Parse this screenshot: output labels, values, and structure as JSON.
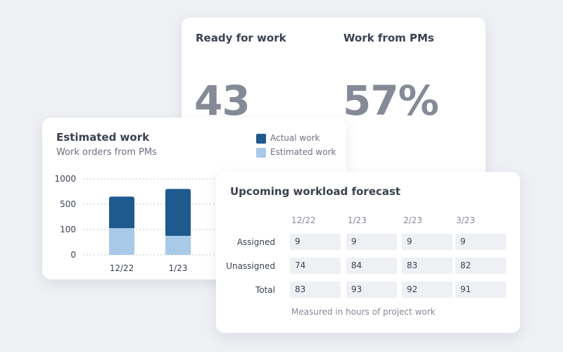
{
  "kpis": {
    "ready": {
      "label": "Ready for work",
      "value": "43"
    },
    "pms": {
      "label": "Work from PMs",
      "value": "57%"
    }
  },
  "estimated": {
    "title": "Estimated work",
    "subtitle": "Work orders from PMs",
    "legend": {
      "actual": "Actual work",
      "estimated": "Estimated work"
    },
    "colors": {
      "actual": "#1f5a8e",
      "estimated": "#a8c9e8"
    }
  },
  "chart_data": {
    "type": "bar",
    "stacked": true,
    "categories": [
      "12/22",
      "1/23"
    ],
    "series": [
      {
        "name": "Estimated work",
        "values": [
          120,
          75
        ]
      },
      {
        "name": "Actual work",
        "values": [
          650,
          800
        ]
      }
    ],
    "y_ticks": [
      "1000",
      "500",
      "100",
      "0"
    ],
    "grid": true
  },
  "forecast": {
    "title": "Upcoming workload forecast",
    "columns": [
      "12/22",
      "1/23",
      "2/23",
      "3/23"
    ],
    "rows": [
      {
        "label": "Assigned",
        "values": [
          "9",
          "9",
          "9",
          "9"
        ]
      },
      {
        "label": "Unassigned",
        "values": [
          "74",
          "84",
          "83",
          "82"
        ]
      },
      {
        "label": "Total",
        "values": [
          "83",
          "93",
          "92",
          "91"
        ]
      }
    ],
    "footnote": "Measured in hours of project work"
  }
}
